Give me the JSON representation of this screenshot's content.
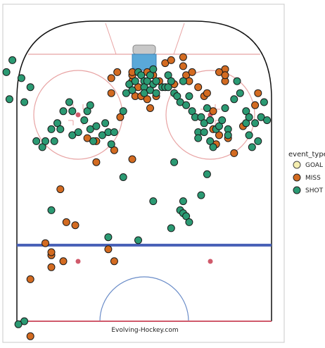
{
  "chart_data": {
    "type": "scatter",
    "title": "",
    "credit": "Evolving-Hockey.com",
    "legend": {
      "title": "event_type",
      "placement": "right",
      "entries": [
        {
          "label": "GOAL",
          "color": "#f5eeb0"
        },
        {
          "label": "MISS",
          "color": "#d36b21"
        },
        {
          "label": "SHOT",
          "color": "#2b9a73"
        }
      ]
    },
    "colors": {
      "goal": "#f5eeb0",
      "miss": "#d36b21",
      "shot": "#2b9a73",
      "rink_red": "#e8a3a3",
      "blue_line": "#4a62b8",
      "crease": "#5aa8d8"
    },
    "xlim": [
      -42.5,
      42.5
    ],
    "ylim": [
      0,
      100
    ],
    "series": [
      {
        "name": "MISS",
        "points": [
          [
            -38,
            14
          ],
          [
            -10,
            20
          ],
          [
            -12,
            24
          ],
          [
            -27,
            20
          ],
          [
            -31,
            22
          ],
          [
            -31,
            23
          ],
          [
            -33,
            26
          ],
          [
            -26,
            33
          ],
          [
            -23,
            32
          ],
          [
            -28,
            44
          ],
          [
            -16,
            53
          ],
          [
            -16,
            60
          ],
          [
            -4,
            54
          ],
          [
            -8,
            68
          ],
          [
            -11,
            76
          ],
          [
            -11,
            81
          ],
          [
            -9,
            83
          ],
          [
            -4,
            80
          ],
          [
            -4,
            82
          ],
          [
            -4,
            83
          ],
          [
            -3,
            75
          ],
          [
            -2,
            78
          ],
          [
            -1,
            75
          ],
          [
            1,
            74
          ],
          [
            2,
            71
          ],
          [
            1,
            83
          ],
          [
            3,
            82
          ],
          [
            4,
            75
          ],
          [
            5,
            80
          ],
          [
            7,
            86
          ],
          [
            9,
            87
          ],
          [
            10,
            79
          ],
          [
            13,
            88
          ],
          [
            13,
            85
          ],
          [
            14,
            82
          ],
          [
            15,
            80
          ],
          [
            16,
            83
          ],
          [
            18,
            78
          ],
          [
            20,
            75
          ],
          [
            21,
            76
          ],
          [
            23,
            70
          ],
          [
            23,
            64
          ],
          [
            24,
            59
          ],
          [
            25,
            62
          ],
          [
            27,
            84
          ],
          [
            25,
            83
          ],
          [
            27,
            80
          ],
          [
            27,
            82
          ],
          [
            28,
            61
          ],
          [
            30,
            56
          ],
          [
            33,
            65
          ],
          [
            37,
            72
          ],
          [
            38,
            76
          ],
          [
            -38,
            -5
          ],
          [
            -31,
            18
          ],
          [
            -10,
            57
          ],
          [
            -19,
            61
          ]
        ]
      },
      {
        "name": "SHOT",
        "points": [
          [
            -45,
            74
          ],
          [
            -46,
            83
          ],
          [
            -44,
            87
          ],
          [
            -41,
            81
          ],
          [
            -40,
            73
          ],
          [
            -38,
            78
          ],
          [
            -36,
            60
          ],
          [
            -34,
            58
          ],
          [
            -33,
            60
          ],
          [
            -31,
            64
          ],
          [
            -30,
            60
          ],
          [
            -29,
            66
          ],
          [
            -28,
            64
          ],
          [
            -27,
            70
          ],
          [
            -25,
            73
          ],
          [
            -24,
            70
          ],
          [
            -24,
            62
          ],
          [
            -22,
            63
          ],
          [
            -20,
            67
          ],
          [
            -19,
            70
          ],
          [
            -18,
            72
          ],
          [
            -18,
            64
          ],
          [
            -17,
            60
          ],
          [
            -16,
            65
          ],
          [
            -14,
            62
          ],
          [
            -13,
            66
          ],
          [
            -12,
            63
          ],
          [
            -11,
            59
          ],
          [
            -10,
            63
          ],
          [
            -7,
            70
          ],
          [
            -6,
            76
          ],
          [
            -5,
            79
          ],
          [
            -4,
            77
          ],
          [
            -3,
            80
          ],
          [
            -2,
            83
          ],
          [
            -1,
            82
          ],
          [
            0,
            80
          ],
          [
            0,
            78
          ],
          [
            0,
            76
          ],
          [
            1,
            80
          ],
          [
            2,
            82
          ],
          [
            2,
            77
          ],
          [
            3,
            79
          ],
          [
            3,
            84
          ],
          [
            4,
            80
          ],
          [
            4,
            76
          ],
          [
            6,
            78
          ],
          [
            7,
            78
          ],
          [
            8,
            82
          ],
          [
            8,
            78
          ],
          [
            9,
            80
          ],
          [
            10,
            76
          ],
          [
            11,
            75
          ],
          [
            12,
            73
          ],
          [
            13,
            80
          ],
          [
            14,
            72
          ],
          [
            15,
            75
          ],
          [
            16,
            70
          ],
          [
            17,
            68
          ],
          [
            18,
            63
          ],
          [
            18,
            61
          ],
          [
            19,
            68
          ],
          [
            20,
            66
          ],
          [
            20,
            63
          ],
          [
            21,
            71
          ],
          [
            22,
            67
          ],
          [
            22,
            60
          ],
          [
            23,
            58
          ],
          [
            24,
            64
          ],
          [
            25,
            65
          ],
          [
            26,
            67
          ],
          [
            27,
            71
          ],
          [
            28,
            64
          ],
          [
            28,
            62
          ],
          [
            30,
            74
          ],
          [
            31,
            80
          ],
          [
            32,
            76
          ],
          [
            34,
            70
          ],
          [
            34,
            66
          ],
          [
            35,
            68
          ],
          [
            35,
            62
          ],
          [
            36,
            58
          ],
          [
            37,
            66
          ],
          [
            38,
            60
          ],
          [
            39,
            68
          ],
          [
            40,
            73
          ],
          [
            41,
            67
          ],
          [
            -31,
            37
          ],
          [
            -40,
            0
          ],
          [
            -42,
            -1
          ],
          [
            13,
            40
          ],
          [
            -2,
            27
          ],
          [
            3,
            40
          ],
          [
            19,
            42
          ],
          [
            21,
            49
          ],
          [
            -12,
            28
          ],
          [
            12,
            37
          ],
          [
            10,
            53
          ],
          [
            -7,
            48
          ],
          [
            13,
            36
          ],
          [
            14,
            35
          ],
          [
            15,
            33
          ],
          [
            9,
            31
          ]
        ]
      }
    ]
  }
}
